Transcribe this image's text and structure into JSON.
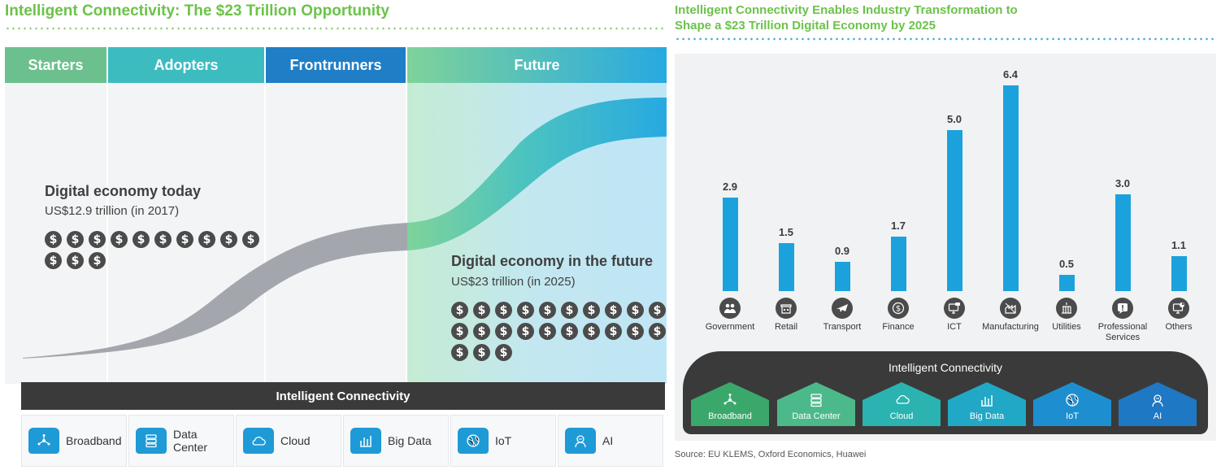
{
  "left": {
    "title": "Intelligent Connectivity: The $23 Trillion Opportunity",
    "stages": [
      "Starters",
      "Adopters",
      "Frontrunners",
      "Future"
    ],
    "today": {
      "title": "Digital economy today",
      "subtitle": "US$12.9 trillion (in 2017)",
      "coins": 13
    },
    "future": {
      "title": "Digital economy in the future",
      "subtitle": "US$23 trillion (in 2025)",
      "coins": 23
    },
    "band_label": "Intelligent Connectivity",
    "tiles": [
      {
        "label_line1": "Broadband",
        "label_line2": "",
        "icon": "broadband-icon"
      },
      {
        "label_line1": "Data",
        "label_line2": "Center",
        "icon": "data-center-icon"
      },
      {
        "label_line1": "Cloud",
        "label_line2": "",
        "icon": "cloud-icon"
      },
      {
        "label_line1": "Big Data",
        "label_line2": "",
        "icon": "big-data-icon"
      },
      {
        "label_line1": "IoT",
        "label_line2": "",
        "icon": "iot-icon"
      },
      {
        "label_line1": "AI",
        "label_line2": "",
        "icon": "ai-icon"
      }
    ],
    "dollar_glyph": "$"
  },
  "right": {
    "title_line1": "Intelligent Connectivity Enables Industry Transformation to",
    "title_line2": "Shape a $23 Trillion Digital Economy by 2025",
    "band_label": "Intelligent Connectivity",
    "houses": [
      {
        "label": "Broadband",
        "color": "#3aa86b",
        "icon": "broadband-icon"
      },
      {
        "label": "Data Center",
        "color": "#4cb98a",
        "icon": "data-center-icon"
      },
      {
        "label": "Cloud",
        "color": "#2ab3b0",
        "icon": "cloud-icon"
      },
      {
        "label": "Big Data",
        "color": "#21a8c6",
        "icon": "big-data-icon"
      },
      {
        "label": "IoT",
        "color": "#1d8fd0",
        "icon": "iot-icon"
      },
      {
        "label": "AI",
        "color": "#1f78c4",
        "icon": "ai-icon"
      }
    ],
    "source": "Source: EU KLEMS, Oxford Economics, Huawei"
  },
  "chart_data": {
    "type": "bar",
    "title": "Intelligent Connectivity Enables Industry Transformation to Shape a $23 Trillion Digital Economy by 2025",
    "categories": [
      "Government",
      "Retail",
      "Transport",
      "Finance",
      "ICT",
      "Manufacturing",
      "Utilities",
      "Professional Services",
      "Others"
    ],
    "category_lines": [
      [
        "Government"
      ],
      [
        "Retail"
      ],
      [
        "Transport"
      ],
      [
        "Finance"
      ],
      [
        "ICT"
      ],
      [
        "Manufacturing"
      ],
      [
        "Utilities"
      ],
      [
        "Professional",
        "Services"
      ],
      [
        "Others"
      ]
    ],
    "category_icons": [
      "government-icon",
      "retail-icon",
      "transport-icon",
      "finance-icon",
      "ict-icon",
      "manufacturing-icon",
      "utilities-icon",
      "professional-services-icon",
      "others-icon"
    ],
    "values": [
      2.9,
      1.5,
      0.9,
      1.7,
      5.0,
      6.4,
      0.5,
      3.0,
      1.1
    ],
    "value_labels": [
      "2.9",
      "1.5",
      "0.9",
      "1.7",
      "5.0",
      "6.4",
      "0.5",
      "3.0",
      "1.1"
    ],
    "bar_color": "#1ba2dc",
    "ylim": [
      0,
      6.4
    ],
    "grid": false
  },
  "colors": {
    "title_green": "#6cc24a",
    "starters": "#6cc08e",
    "adopters": "#3dbcc0",
    "frontrunners": "#1f7ec6",
    "future_start": "#7fd39a",
    "future_end": "#27a9e1"
  }
}
